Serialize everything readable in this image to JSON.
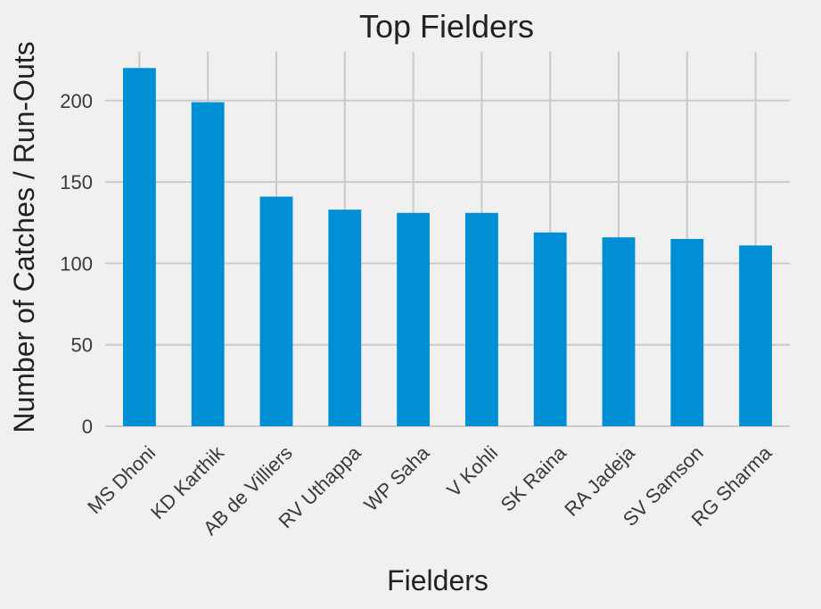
{
  "chart_data": {
    "type": "bar",
    "title": "Top Fielders",
    "xlabel": "Fielders",
    "ylabel": "Number of Catches / Run-Outs",
    "categories": [
      "MS Dhoni",
      "KD Karthik",
      "AB de Villiers",
      "RV Uthappa",
      "WP Saha",
      "V Kohli",
      "SK Raina",
      "RA Jadeja",
      "SV Samson",
      "RG Sharma"
    ],
    "values": [
      220,
      199,
      141,
      133,
      131,
      131,
      119,
      116,
      115,
      111
    ],
    "ylim": [
      0,
      230
    ],
    "yticks": [
      "0",
      "50",
      "100",
      "150",
      "200"
    ],
    "grid": true,
    "colors": {
      "bar": "#008fd5",
      "background": "#f0f0f0",
      "grid": "#cbcbcb"
    }
  }
}
